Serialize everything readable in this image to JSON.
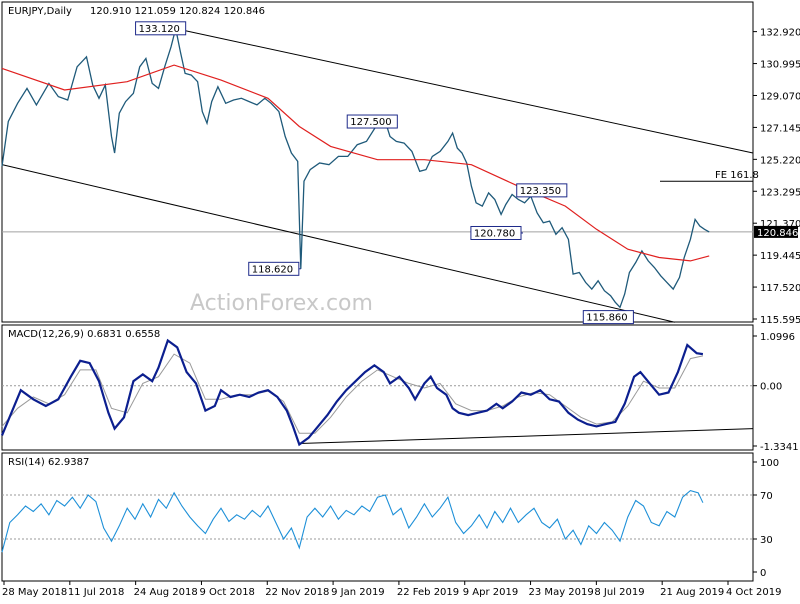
{
  "chart_data": [
    {
      "type": "bar",
      "subtype": "ohlc",
      "header": {
        "symbol_timeframe": "EURJPY,Daily",
        "ohlc": "120.910 121.059 120.824 120.846"
      },
      "ylim": [
        115.595,
        133.5
      ],
      "y_ticks": [
        "132.920",
        "130.995",
        "129.070",
        "127.145",
        "125.220",
        "123.295",
        "121.370",
        "119.445",
        "117.520",
        "115.595"
      ],
      "last_price": "120.846",
      "watermark": "ActionForex.com",
      "x_labels": [
        "28 May 2018",
        "11 Jul 2018",
        "24 Aug 2018",
        "9 Oct 2018",
        "22 Nov 2018",
        "9 Jan 2019",
        "22 Feb 2019",
        "9 Apr 2019",
        "23 May 2019",
        "8 Jul 2019",
        "21 Aug 2019",
        "4 Oct 2019"
      ],
      "price_path": [
        [
          0,
          124.8
        ],
        [
          4,
          127.5
        ],
        [
          10,
          128.6
        ],
        [
          16,
          129.5
        ],
        [
          22,
          128.5
        ],
        [
          30,
          129.8
        ],
        [
          36,
          129.0
        ],
        [
          42,
          128.8
        ],
        [
          48,
          130.8
        ],
        [
          54,
          131.4
        ],
        [
          58,
          129.7
        ],
        [
          62,
          128.9
        ],
        [
          66,
          129.7
        ],
        [
          70,
          126.6
        ],
        [
          72,
          125.6
        ],
        [
          75,
          128.0
        ],
        [
          79,
          128.7
        ],
        [
          84,
          129.2
        ],
        [
          88,
          130.8
        ],
        [
          92,
          131.3
        ],
        [
          96,
          129.8
        ],
        [
          100,
          129.5
        ],
        [
          104,
          130.8
        ],
        [
          108,
          132.0
        ],
        [
          111,
          133.1
        ],
        [
          114,
          131.7
        ],
        [
          117,
          130.4
        ],
        [
          121,
          130.3
        ],
        [
          125,
          129.9
        ],
        [
          128,
          128.1
        ],
        [
          131,
          127.4
        ],
        [
          134,
          128.7
        ],
        [
          138,
          129.6
        ],
        [
          143,
          128.6
        ],
        [
          148,
          128.8
        ],
        [
          153,
          128.9
        ],
        [
          158,
          128.7
        ],
        [
          163,
          128.5
        ],
        [
          168,
          128.9
        ],
        [
          172,
          128.6
        ],
        [
          177,
          128.1
        ],
        [
          181,
          126.6
        ],
        [
          185,
          125.6
        ],
        [
          189,
          125.1
        ],
        [
          191,
          118.62
        ],
        [
          193,
          123.9
        ],
        [
          197,
          124.6
        ],
        [
          203,
          125.0
        ],
        [
          209,
          124.9
        ],
        [
          215,
          125.4
        ],
        [
          221,
          125.4
        ],
        [
          227,
          126.1
        ],
        [
          233,
          126.3
        ],
        [
          239,
          127.2
        ],
        [
          245,
          127.5
        ],
        [
          248,
          126.6
        ],
        [
          252,
          126.3
        ],
        [
          257,
          126.2
        ],
        [
          262,
          125.7
        ],
        [
          267,
          124.5
        ],
        [
          271,
          124.6
        ],
        [
          275,
          125.4
        ],
        [
          280,
          125.7
        ],
        [
          285,
          126.3
        ],
        [
          288,
          126.8
        ],
        [
          291,
          125.9
        ],
        [
          294,
          125.6
        ],
        [
          297,
          125.0
        ],
        [
          300,
          123.6
        ],
        [
          303,
          122.6
        ],
        [
          307,
          122.4
        ],
        [
          311,
          123.2
        ],
        [
          315,
          122.8
        ],
        [
          319,
          121.9
        ],
        [
          322,
          122.5
        ],
        [
          326,
          123.1
        ],
        [
          330,
          122.8
        ],
        [
          334,
          122.6
        ],
        [
          338,
          123.0
        ],
        [
          342,
          122.0
        ],
        [
          346,
          121.4
        ],
        [
          350,
          121.5
        ],
        [
          354,
          120.7
        ],
        [
          358,
          121.1
        ],
        [
          362,
          120.4
        ],
        [
          365,
          118.3
        ],
        [
          369,
          118.4
        ],
        [
          373,
          117.8
        ],
        [
          377,
          117.4
        ],
        [
          381,
          117.9
        ],
        [
          385,
          117.3
        ],
        [
          389,
          117.0
        ],
        [
          392,
          116.6
        ],
        [
          395,
          116.3
        ],
        [
          398,
          117.1
        ],
        [
          401,
          118.4
        ],
        [
          405,
          119.0
        ],
        [
          409,
          119.7
        ],
        [
          413,
          119.1
        ],
        [
          417,
          118.7
        ],
        [
          421,
          118.2
        ],
        [
          425,
          117.8
        ],
        [
          429,
          117.4
        ],
        [
          433,
          118.1
        ],
        [
          436,
          119.3
        ],
        [
          440,
          120.4
        ],
        [
          443,
          121.6
        ],
        [
          446,
          121.2
        ],
        [
          449,
          121.0
        ],
        [
          452,
          120.846
        ]
      ],
      "sma_path": [
        [
          0,
          130.7
        ],
        [
          40,
          129.4
        ],
        [
          80,
          129.9
        ],
        [
          110,
          130.9
        ],
        [
          140,
          130.0
        ],
        [
          170,
          128.9
        ],
        [
          190,
          127.2
        ],
        [
          210,
          126.0
        ],
        [
          240,
          125.2
        ],
        [
          270,
          125.2
        ],
        [
          300,
          124.9
        ],
        [
          330,
          123.6
        ],
        [
          360,
          122.4
        ],
        [
          380,
          121.0
        ],
        [
          400,
          119.8
        ],
        [
          420,
          119.3
        ],
        [
          440,
          119.1
        ],
        [
          452,
          119.4
        ]
      ],
      "channel_upper": [
        [
          111,
          133.1
        ],
        [
          480,
          125.6
        ]
      ],
      "channel_lower": [
        [
          0,
          124.9
        ],
        [
          430,
          115.4
        ]
      ],
      "levels": [
        {
          "label": "133.120",
          "x": 111,
          "value": 133.12
        },
        {
          "label": "118.620",
          "x": 191,
          "value": 118.62
        },
        {
          "label": "127.500",
          "x": 245,
          "value": 127.5
        },
        {
          "label": "123.350",
          "x": 345,
          "value": 123.35
        },
        {
          "label": "120.780",
          "x": 333,
          "value": 120.78
        },
        {
          "label": "115.860",
          "x": 401,
          "value": 115.86
        }
      ],
      "fe_label": "FE 161.8",
      "fe_value": 123.9,
      "horizontal_line": 120.846
    },
    {
      "type": "line",
      "title": "MACD(12,26,9) 0.6831 0.6558",
      "ylim": [
        -1.3341,
        1.0996
      ],
      "y_ticks": [
        "1.0996",
        "0.00",
        "-1.3341"
      ],
      "macd": [
        [
          0,
          -1.1
        ],
        [
          6,
          -0.6
        ],
        [
          12,
          -0.1
        ],
        [
          20,
          -0.3
        ],
        [
          28,
          -0.45
        ],
        [
          36,
          -0.3
        ],
        [
          44,
          0.2
        ],
        [
          50,
          0.55
        ],
        [
          56,
          0.5
        ],
        [
          62,
          0.1
        ],
        [
          68,
          -0.6
        ],
        [
          72,
          -0.95
        ],
        [
          78,
          -0.7
        ],
        [
          84,
          0.1
        ],
        [
          90,
          0.25
        ],
        [
          96,
          0.1
        ],
        [
          100,
          0.4
        ],
        [
          106,
          1.0
        ],
        [
          112,
          0.85
        ],
        [
          118,
          0.3
        ],
        [
          124,
          0.05
        ],
        [
          130,
          -0.55
        ],
        [
          136,
          -0.45
        ],
        [
          140,
          -0.1
        ],
        [
          146,
          -0.25
        ],
        [
          152,
          -0.2
        ],
        [
          158,
          -0.25
        ],
        [
          164,
          -0.15
        ],
        [
          170,
          -0.1
        ],
        [
          176,
          -0.25
        ],
        [
          182,
          -0.55
        ],
        [
          186,
          -0.9
        ],
        [
          190,
          -1.3
        ],
        [
          196,
          -1.15
        ],
        [
          202,
          -0.9
        ],
        [
          208,
          -0.65
        ],
        [
          214,
          -0.35
        ],
        [
          220,
          -0.1
        ],
        [
          226,
          0.1
        ],
        [
          232,
          0.3
        ],
        [
          238,
          0.45
        ],
        [
          244,
          0.3
        ],
        [
          248,
          0.05
        ],
        [
          254,
          0.2
        ],
        [
          260,
          -0.05
        ],
        [
          264,
          -0.3
        ],
        [
          270,
          0.05
        ],
        [
          274,
          0.2
        ],
        [
          278,
          -0.05
        ],
        [
          284,
          -0.2
        ],
        [
          288,
          -0.5
        ],
        [
          292,
          -0.6
        ],
        [
          298,
          -0.65
        ],
        [
          304,
          -0.6
        ],
        [
          310,
          -0.55
        ],
        [
          316,
          -0.4
        ],
        [
          320,
          -0.5
        ],
        [
          326,
          -0.35
        ],
        [
          332,
          -0.15
        ],
        [
          338,
          -0.2
        ],
        [
          344,
          -0.1
        ],
        [
          350,
          -0.3
        ],
        [
          356,
          -0.35
        ],
        [
          362,
          -0.6
        ],
        [
          368,
          -0.75
        ],
        [
          374,
          -0.85
        ],
        [
          380,
          -0.9
        ],
        [
          386,
          -0.85
        ],
        [
          392,
          -0.8
        ],
        [
          398,
          -0.4
        ],
        [
          404,
          0.2
        ],
        [
          408,
          0.3
        ],
        [
          414,
          0.05
        ],
        [
          420,
          -0.2
        ],
        [
          426,
          -0.15
        ],
        [
          432,
          0.3
        ],
        [
          438,
          0.9
        ],
        [
          444,
          0.72
        ],
        [
          448,
          0.7
        ]
      ],
      "signal": [
        [
          0,
          -0.9
        ],
        [
          10,
          -0.5
        ],
        [
          20,
          -0.25
        ],
        [
          30,
          -0.4
        ],
        [
          40,
          -0.2
        ],
        [
          50,
          0.35
        ],
        [
          60,
          0.35
        ],
        [
          70,
          -0.5
        ],
        [
          80,
          -0.6
        ],
        [
          90,
          0.05
        ],
        [
          100,
          0.2
        ],
        [
          110,
          0.7
        ],
        [
          120,
          0.5
        ],
        [
          130,
          -0.3
        ],
        [
          140,
          -0.3
        ],
        [
          150,
          -0.2
        ],
        [
          160,
          -0.2
        ],
        [
          170,
          -0.12
        ],
        [
          180,
          -0.35
        ],
        [
          190,
          -1.05
        ],
        [
          200,
          -1.05
        ],
        [
          210,
          -0.7
        ],
        [
          220,
          -0.25
        ],
        [
          230,
          0.1
        ],
        [
          240,
          0.35
        ],
        [
          250,
          0.2
        ],
        [
          260,
          0.05
        ],
        [
          270,
          -0.05
        ],
        [
          280,
          0.05
        ],
        [
          290,
          -0.4
        ],
        [
          300,
          -0.55
        ],
        [
          310,
          -0.55
        ],
        [
          320,
          -0.45
        ],
        [
          330,
          -0.25
        ],
        [
          340,
          -0.15
        ],
        [
          350,
          -0.2
        ],
        [
          360,
          -0.45
        ],
        [
          370,
          -0.7
        ],
        [
          380,
          -0.85
        ],
        [
          390,
          -0.8
        ],
        [
          400,
          -0.45
        ],
        [
          410,
          0.1
        ],
        [
          420,
          -0.05
        ],
        [
          430,
          -0.05
        ],
        [
          440,
          0.6
        ],
        [
          448,
          0.66
        ]
      ],
      "trendline": [
        [
          190,
          -1.28
        ],
        [
          480,
          -0.95
        ]
      ]
    },
    {
      "type": "line",
      "title": "RSI(14) 62.9387",
      "ylim": [
        0,
        100
      ],
      "y_ticks": [
        "100",
        "70",
        "30",
        "0"
      ],
      "levels_dotted": [
        70,
        30
      ],
      "rsi": [
        [
          0,
          18
        ],
        [
          5,
          45
        ],
        [
          10,
          52
        ],
        [
          15,
          60
        ],
        [
          20,
          55
        ],
        [
          25,
          62
        ],
        [
          30,
          52
        ],
        [
          35,
          65
        ],
        [
          40,
          60
        ],
        [
          45,
          68
        ],
        [
          50,
          58
        ],
        [
          55,
          70
        ],
        [
          60,
          64
        ],
        [
          65,
          40
        ],
        [
          70,
          28
        ],
        [
          75,
          42
        ],
        [
          80,
          58
        ],
        [
          85,
          48
        ],
        [
          90,
          62
        ],
        [
          95,
          50
        ],
        [
          100,
          66
        ],
        [
          105,
          58
        ],
        [
          110,
          72
        ],
        [
          115,
          60
        ],
        [
          120,
          50
        ],
        [
          125,
          42
        ],
        [
          130,
          35
        ],
        [
          135,
          48
        ],
        [
          140,
          58
        ],
        [
          145,
          46
        ],
        [
          150,
          52
        ],
        [
          155,
          48
        ],
        [
          160,
          56
        ],
        [
          165,
          50
        ],
        [
          170,
          60
        ],
        [
          175,
          45
        ],
        [
          180,
          30
        ],
        [
          185,
          40
        ],
        [
          190,
          22
        ],
        [
          195,
          50
        ],
        [
          200,
          58
        ],
        [
          205,
          50
        ],
        [
          210,
          60
        ],
        [
          215,
          48
        ],
        [
          220,
          56
        ],
        [
          225,
          52
        ],
        [
          230,
          60
        ],
        [
          235,
          55
        ],
        [
          240,
          68
        ],
        [
          245,
          70
        ],
        [
          250,
          52
        ],
        [
          255,
          58
        ],
        [
          260,
          40
        ],
        [
          265,
          50
        ],
        [
          270,
          62
        ],
        [
          275,
          50
        ],
        [
          280,
          58
        ],
        [
          285,
          68
        ],
        [
          290,
          45
        ],
        [
          295,
          35
        ],
        [
          300,
          42
        ],
        [
          305,
          52
        ],
        [
          310,
          40
        ],
        [
          315,
          55
        ],
        [
          320,
          45
        ],
        [
          325,
          58
        ],
        [
          330,
          45
        ],
        [
          335,
          52
        ],
        [
          340,
          58
        ],
        [
          345,
          45
        ],
        [
          350,
          40
        ],
        [
          355,
          48
        ],
        [
          360,
          30
        ],
        [
          365,
          38
        ],
        [
          370,
          25
        ],
        [
          375,
          42
        ],
        [
          380,
          35
        ],
        [
          385,
          45
        ],
        [
          390,
          38
        ],
        [
          395,
          28
        ],
        [
          400,
          50
        ],
        [
          405,
          65
        ],
        [
          410,
          60
        ],
        [
          415,
          45
        ],
        [
          420,
          42
        ],
        [
          425,
          55
        ],
        [
          430,
          50
        ],
        [
          435,
          68
        ],
        [
          440,
          74
        ],
        [
          445,
          72
        ],
        [
          448,
          63
        ]
      ]
    }
  ]
}
